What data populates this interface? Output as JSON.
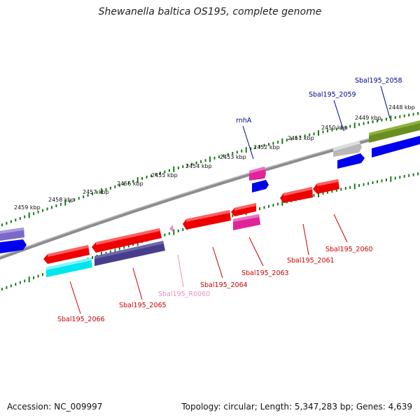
{
  "title": "Shewanella baltica OS195, complete genome",
  "footer": {
    "accession": "Accession: NC_009997",
    "summary": "Topology: circular; Length: 5,347,283 bp; Genes: 4,639"
  },
  "colors": {
    "backbone": "#8c8c8c",
    "tick": "#1a7a1a",
    "label_dark_red": "#cc0000",
    "label_dark_blue": "#00008b",
    "label_pink": "#e68fbf"
  },
  "scale_labels": [
    "2448 kbp",
    "2449 kbp",
    "2450 kbp",
    "2451 kbp",
    "2452 kbp",
    "2453 kbp",
    "2454 kbp",
    "2455 kbp",
    "2456 kbp",
    "2457 kbp",
    "2458 kbp",
    "2459 kbp"
  ],
  "gene_labels": [
    {
      "text": "Sbal195_2058",
      "color": "#00008b"
    },
    {
      "text": "Sbal195_2059",
      "color": "#00008b"
    },
    {
      "text": "rnhA",
      "color": "#00008b"
    },
    {
      "text": "Sbal195_2060",
      "color": "#cc0000"
    },
    {
      "text": "Sbal195_2061",
      "color": "#cc0000"
    },
    {
      "text": "Sbal195_2063",
      "color": "#cc0000"
    },
    {
      "text": "Sbal195_2064",
      "color": "#cc0000"
    },
    {
      "text": "Sbal195_R0060",
      "color": "#e68fbf"
    },
    {
      "text": "Sbal195_2065",
      "color": "#cc0000"
    },
    {
      "text": "Sbal195_2066",
      "color": "#cc0000"
    }
  ]
}
